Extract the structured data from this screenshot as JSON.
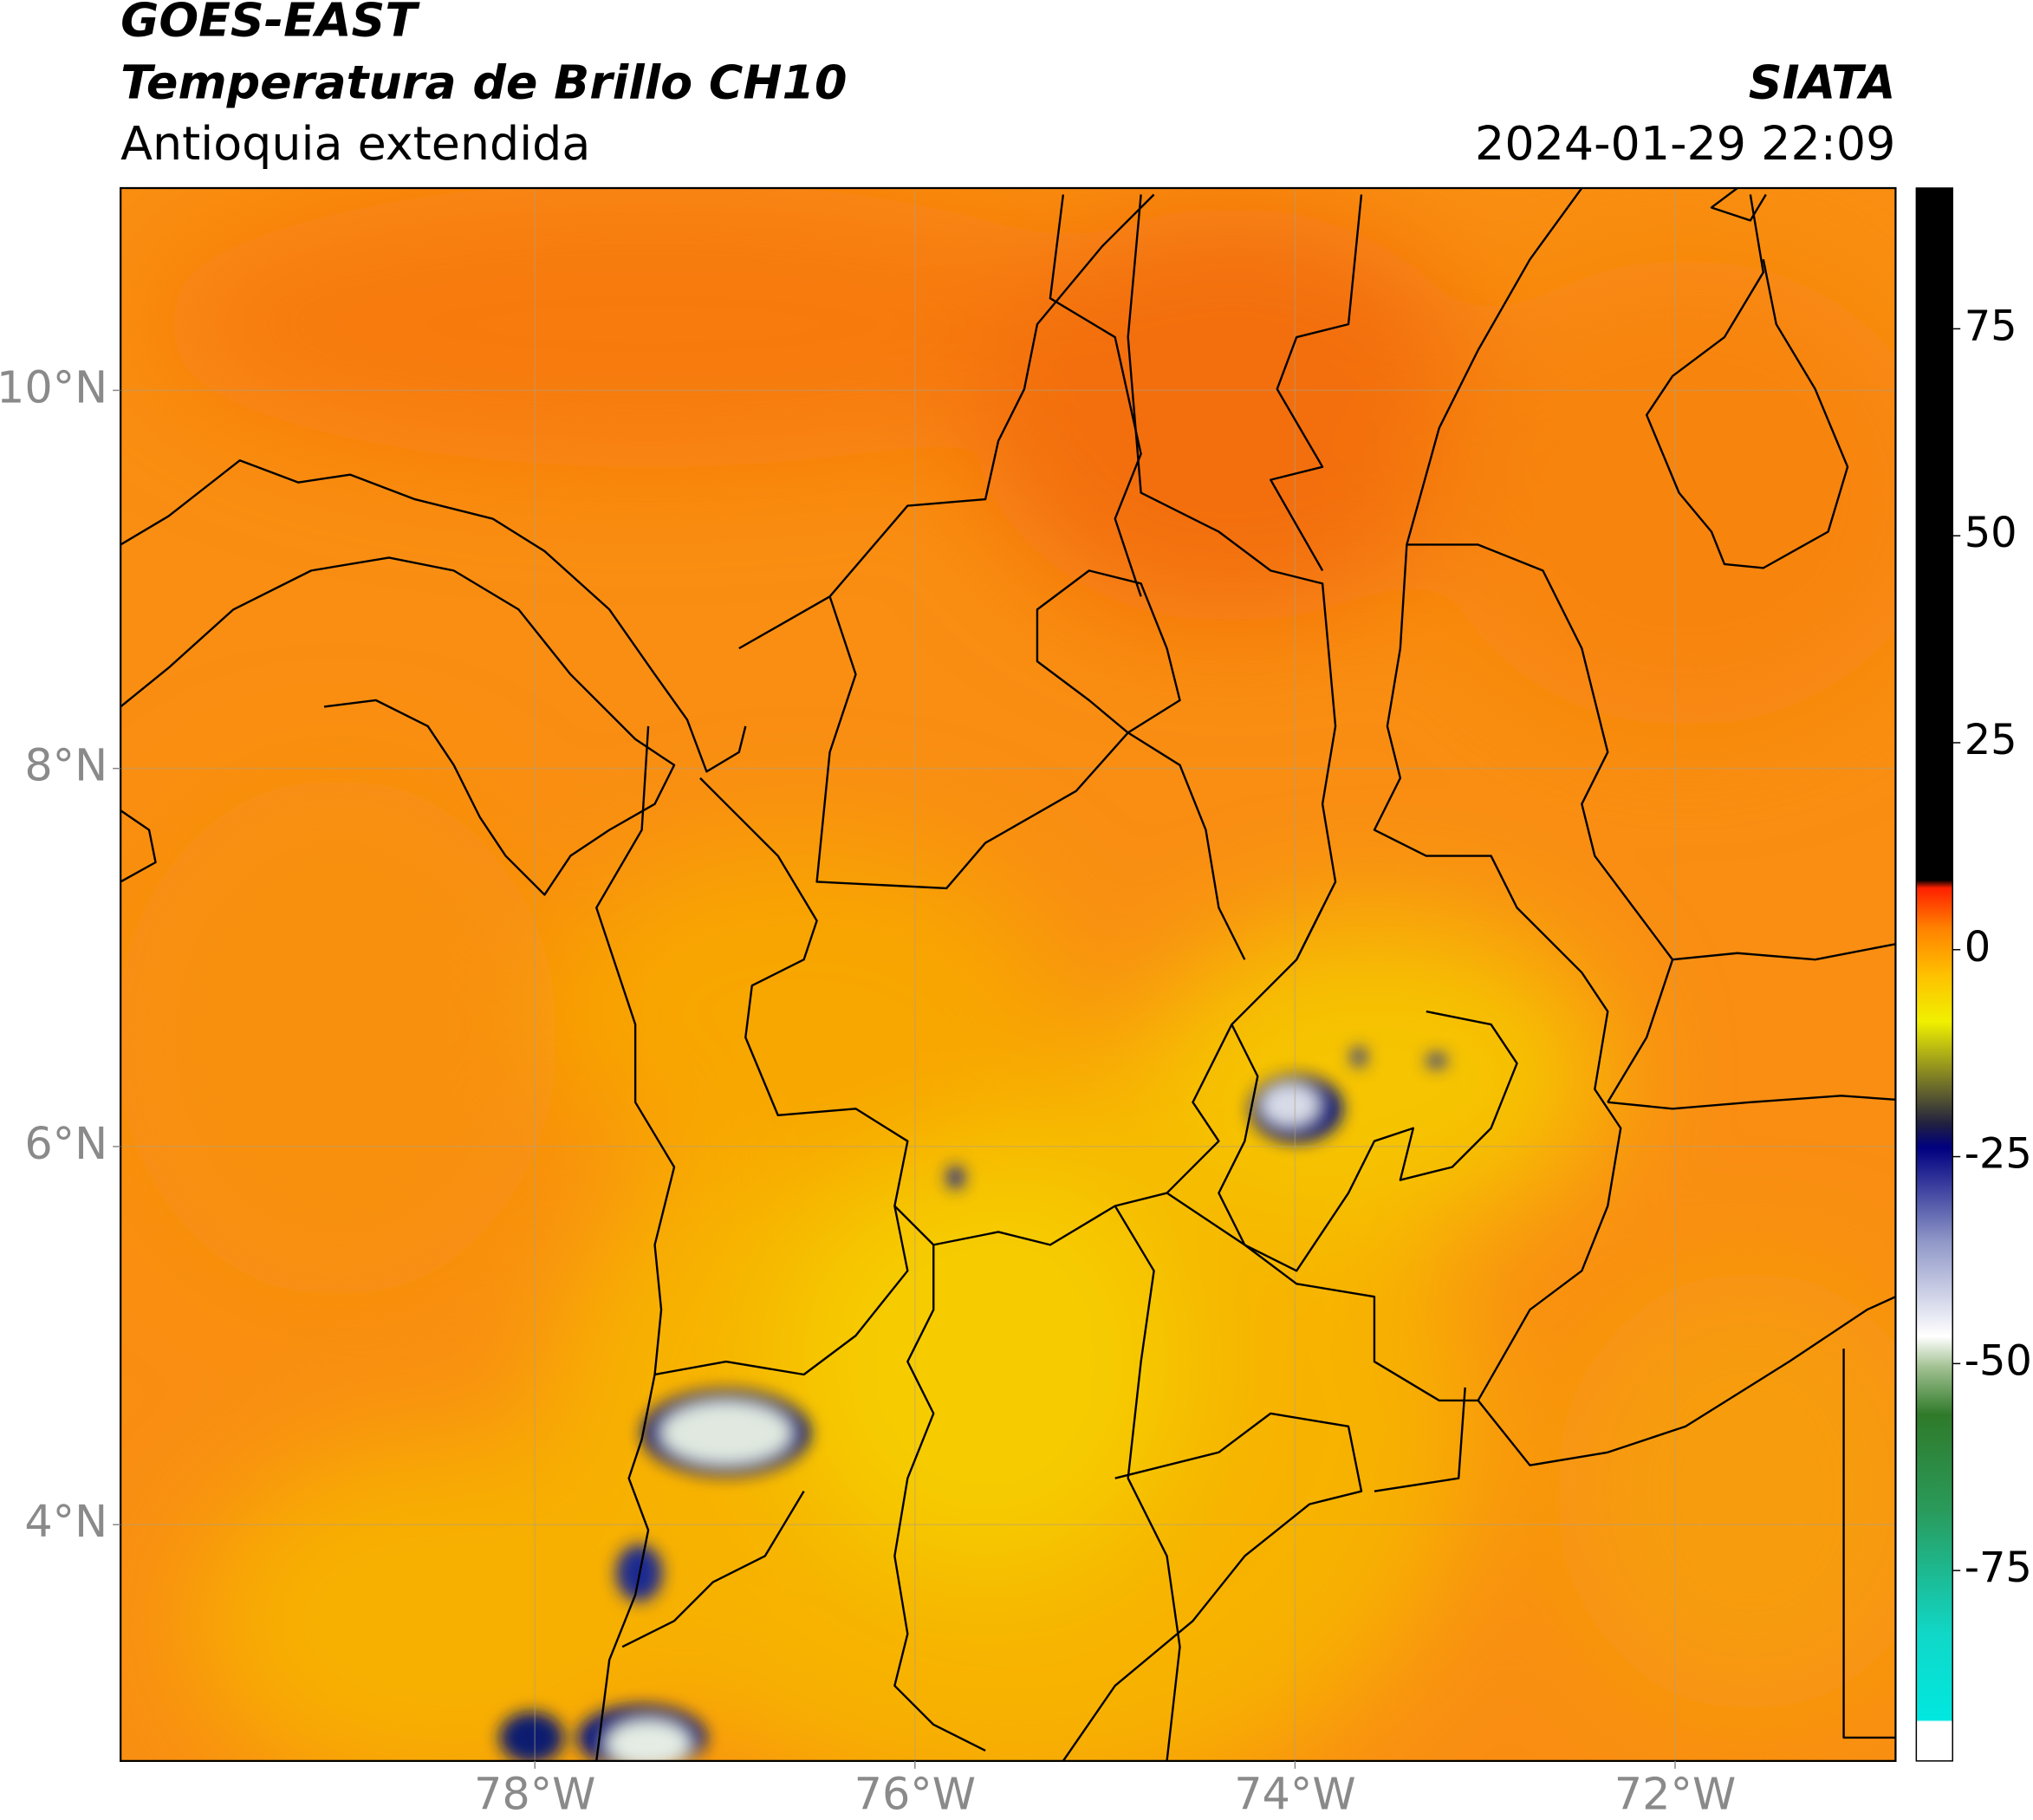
{
  "chart_data": {
    "type": "map",
    "title": "GOES-EAST",
    "subtitle": "Temperatura de Brillo CH10",
    "region": "Antioquia extendida",
    "source": "SIATA",
    "datetime": "2024-01-29 22:09",
    "xlim": [
      -80.18,
      -70.84
    ],
    "ylim": [
      2.75,
      11.07
    ],
    "xticks": [
      {
        "value": -78,
        "label": "78°W"
      },
      {
        "value": -76,
        "label": "76°W"
      },
      {
        "value": -74,
        "label": "74°W"
      },
      {
        "value": -72,
        "label": "72°W"
      }
    ],
    "yticks": [
      {
        "value": 4,
        "label": "4°N"
      },
      {
        "value": 6,
        "label": "6°N"
      },
      {
        "value": 8,
        "label": "8°N"
      },
      {
        "value": 10,
        "label": "10°N"
      }
    ],
    "grid": true,
    "colorbar": {
      "lim": [
        -98,
        92
      ],
      "ticks": [
        75,
        50,
        25,
        0,
        -25,
        -50,
        -75
      ]
    }
  }
}
